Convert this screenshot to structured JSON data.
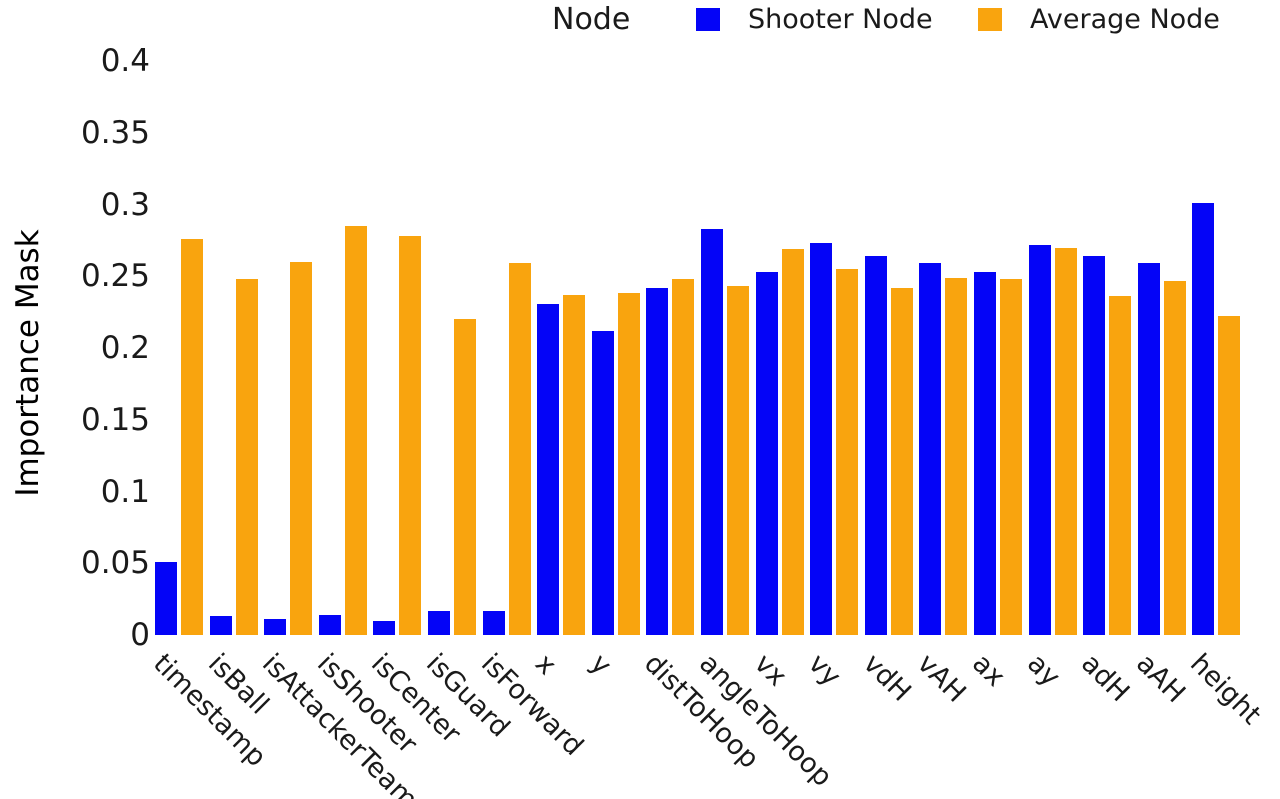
{
  "legend": {
    "title": "Node",
    "items": [
      {
        "label": "Shooter Node",
        "color": "#0404f7"
      },
      {
        "label": "Average Node",
        "color": "#f9a40e"
      }
    ]
  },
  "y_axis": {
    "label": "Importance Mask",
    "tick_labels": [
      "0",
      "0.05",
      "0.1",
      "0.15",
      "0.2",
      "0.25",
      "0.3",
      "0.35",
      "0.4"
    ]
  },
  "chart_data": {
    "type": "bar",
    "title": "",
    "xlabel": "",
    "ylabel": "Importance Mask",
    "ylim": [
      0,
      0.4
    ],
    "grid": false,
    "legend_title": "Node",
    "legend_position": "top",
    "categories": [
      "timestamp",
      "isBall",
      "isAttackerTeam",
      "isShooter",
      "isCenter",
      "isGuard",
      "isForward",
      "x",
      "y",
      "distToHoop",
      "angleToHoop",
      "vx",
      "vy",
      "vdH",
      "vAH",
      "ax",
      "ay",
      "adH",
      "aAH",
      "height"
    ],
    "series": [
      {
        "name": "Shooter Node",
        "color": "#0404f7",
        "values": [
          0.051,
          0.013,
          0.011,
          0.014,
          0.01,
          0.017,
          0.017,
          0.231,
          0.212,
          0.242,
          0.283,
          0.253,
          0.273,
          0.264,
          0.259,
          0.253,
          0.272,
          0.264,
          0.259,
          0.301
        ]
      },
      {
        "name": "Average Node",
        "color": "#f9a40e",
        "values": [
          0.276,
          0.248,
          0.26,
          0.285,
          0.278,
          0.22,
          0.259,
          0.237,
          0.238,
          0.248,
          0.243,
          0.269,
          0.255,
          0.242,
          0.249,
          0.248,
          0.27,
          0.236,
          0.247,
          0.222
        ]
      }
    ]
  }
}
